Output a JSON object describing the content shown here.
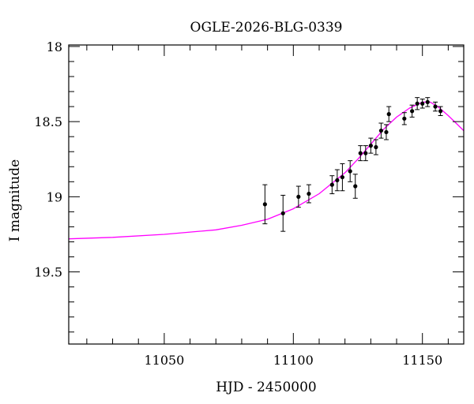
{
  "chart_data": {
    "type": "scatter",
    "title": "OGLE-2026-BLG-0339",
    "xlabel": "HJD - 2450000",
    "ylabel": "I magnitude",
    "xlim": [
      11013,
      11166
    ],
    "ylim": [
      19.98,
      17.99
    ],
    "y_inverted": true,
    "grid": false,
    "x_ticks": [
      11050,
      11100,
      11150
    ],
    "x_tick_labels": [
      "11050",
      "11100",
      "11150"
    ],
    "y_ticks": [
      18,
      18.5,
      19,
      19.5
    ],
    "y_tick_labels": [
      "18",
      "18.5",
      "19",
      "19.5"
    ],
    "series": [
      {
        "kind": "points",
        "color": "#000000",
        "x": [
          11089,
          11096,
          11102,
          11106,
          11115,
          11117,
          11119,
          11122,
          11124,
          11126,
          11128,
          11130,
          11132,
          11134,
          11136,
          11137,
          11143,
          11146,
          11148,
          11150,
          11152,
          11155,
          11157
        ],
        "y": [
          19.05,
          19.11,
          19.0,
          18.98,
          18.92,
          18.89,
          18.87,
          18.83,
          18.93,
          18.71,
          18.71,
          18.66,
          18.67,
          18.56,
          18.57,
          18.45,
          18.48,
          18.43,
          18.38,
          18.38,
          18.37,
          18.4,
          18.43
        ],
        "err": [
          0.13,
          0.12,
          0.07,
          0.06,
          0.06,
          0.07,
          0.09,
          0.07,
          0.08,
          0.05,
          0.05,
          0.05,
          0.05,
          0.05,
          0.05,
          0.05,
          0.04,
          0.04,
          0.04,
          0.03,
          0.03,
          0.03,
          0.03
        ]
      },
      {
        "kind": "model",
        "color": "#ff00ff",
        "x": [
          11013,
          11030,
          11050,
          11070,
          11080,
          11090,
          11100,
          11110,
          11120,
          11125,
          11130,
          11135,
          11140,
          11145,
          11150,
          11153,
          11156,
          11160,
          11163,
          11166
        ],
        "y": [
          19.28,
          19.27,
          19.25,
          19.22,
          19.19,
          19.15,
          19.08,
          18.98,
          18.84,
          18.75,
          18.65,
          18.55,
          18.47,
          18.41,
          18.37,
          18.37,
          18.4,
          18.46,
          18.51,
          18.56
        ]
      }
    ]
  }
}
